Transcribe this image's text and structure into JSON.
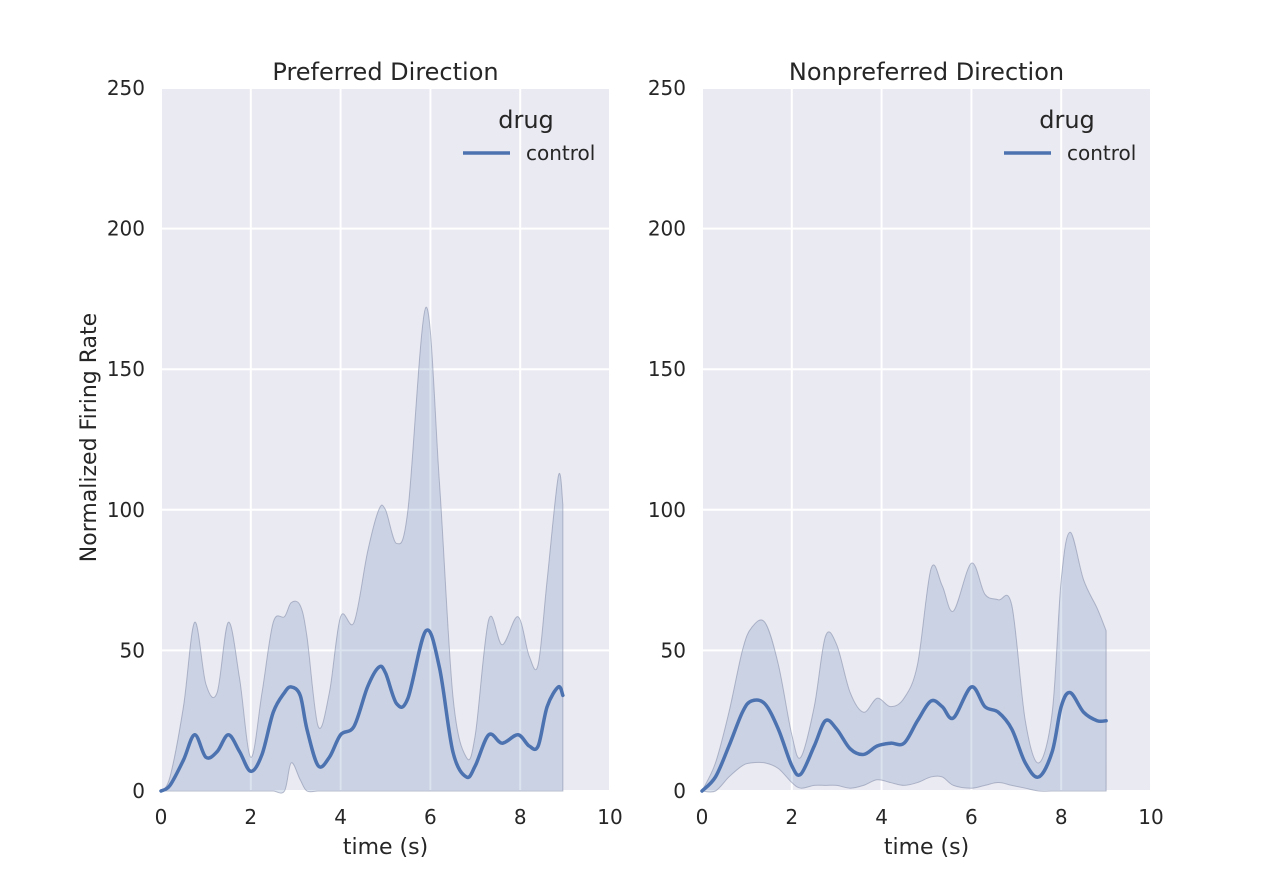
{
  "chart_data": [
    {
      "type": "line",
      "title": "Preferred Direction",
      "xlabel": "time (s)",
      "ylabel": "Normalized Firing Rate",
      "xlim": [
        0,
        10
      ],
      "ylim": [
        0,
        250
      ],
      "xticks": [
        0,
        2,
        4,
        6,
        8,
        10
      ],
      "yticks": [
        0,
        50,
        100,
        150,
        200,
        250
      ],
      "grid": true,
      "legend": {
        "title": "drug",
        "placement": "top-right"
      },
      "colors": {
        "line": "#4c72b0",
        "band": "#4c72b0",
        "background": "#eaeaf2",
        "grid": "#ffffff"
      },
      "series": [
        {
          "name": "control",
          "x": [
            0,
            0.2,
            0.5,
            0.75,
            1.0,
            1.25,
            1.5,
            1.75,
            2.0,
            2.25,
            2.5,
            2.75,
            2.9,
            3.1,
            3.25,
            3.5,
            3.75,
            4.0,
            4.3,
            4.6,
            4.85,
            5.0,
            5.25,
            5.5,
            5.9,
            6.2,
            6.5,
            6.8,
            7.0,
            7.3,
            7.6,
            7.95,
            8.2,
            8.4,
            8.6,
            8.85,
            8.95
          ],
          "y": [
            0,
            2,
            11,
            20,
            12,
            14,
            20,
            14,
            7,
            13,
            28,
            35,
            37,
            34,
            22,
            9,
            12,
            20,
            23,
            37,
            44,
            42,
            31,
            33,
            57,
            44,
            14,
            5,
            9,
            20,
            17,
            20,
            16,
            16,
            30,
            37,
            34
          ],
          "lower": [
            0,
            0,
            0,
            0,
            0,
            0,
            0,
            0,
            0,
            0,
            0,
            0,
            10,
            4,
            0,
            0,
            0,
            0,
            0,
            0,
            0,
            0,
            0,
            0,
            0,
            0,
            0,
            0,
            0,
            0,
            0,
            0,
            0,
            0,
            0,
            0,
            0
          ],
          "upper": [
            0,
            5,
            30,
            60,
            38,
            35,
            60,
            40,
            12,
            35,
            60,
            62,
            67,
            66,
            55,
            23,
            35,
            62,
            60,
            85,
            100,
            100,
            88,
            100,
            172,
            110,
            34,
            12,
            20,
            61,
            52,
            62,
            48,
            45,
            75,
            112,
            102
          ]
        }
      ]
    },
    {
      "type": "line",
      "title": "Nonpreferred Direction",
      "xlabel": "time (s)",
      "ylabel": "",
      "xlim": [
        0,
        10
      ],
      "ylim": [
        0,
        250
      ],
      "xticks": [
        0,
        2,
        4,
        6,
        8,
        10
      ],
      "yticks": [
        0,
        50,
        100,
        150,
        200,
        250
      ],
      "grid": true,
      "legend": {
        "title": "drug",
        "placement": "top-right"
      },
      "colors": {
        "line": "#4c72b0",
        "band": "#4c72b0",
        "background": "#eaeaf2",
        "grid": "#ffffff"
      },
      "series": [
        {
          "name": "control",
          "x": [
            0,
            0.3,
            0.6,
            0.9,
            1.1,
            1.4,
            1.7,
            2.0,
            2.2,
            2.5,
            2.75,
            3.0,
            3.3,
            3.6,
            3.9,
            4.2,
            4.5,
            4.8,
            5.1,
            5.35,
            5.6,
            6.0,
            6.3,
            6.6,
            6.9,
            7.2,
            7.5,
            7.8,
            8.0,
            8.2,
            8.5,
            8.8,
            9.0
          ],
          "y": [
            0,
            5,
            16,
            28,
            32,
            31,
            22,
            9,
            6,
            16,
            25,
            22,
            15,
            13,
            16,
            17,
            17,
            25,
            32,
            30,
            26,
            37,
            30,
            28,
            22,
            10,
            5,
            14,
            30,
            35,
            28,
            25,
            25
          ],
          "lower": [
            0,
            0,
            5,
            9,
            10,
            10,
            8,
            3,
            1,
            2,
            2,
            2,
            1,
            2,
            4,
            3,
            2,
            3,
            5,
            5,
            2,
            1,
            2,
            3,
            2,
            1,
            0,
            0,
            0,
            0,
            0,
            0,
            0
          ],
          "upper": [
            0,
            10,
            28,
            50,
            58,
            60,
            45,
            20,
            12,
            30,
            55,
            52,
            35,
            28,
            33,
            30,
            33,
            45,
            79,
            73,
            64,
            81,
            70,
            68,
            66,
            25,
            10,
            28,
            75,
            92,
            75,
            65,
            57
          ]
        }
      ]
    }
  ]
}
